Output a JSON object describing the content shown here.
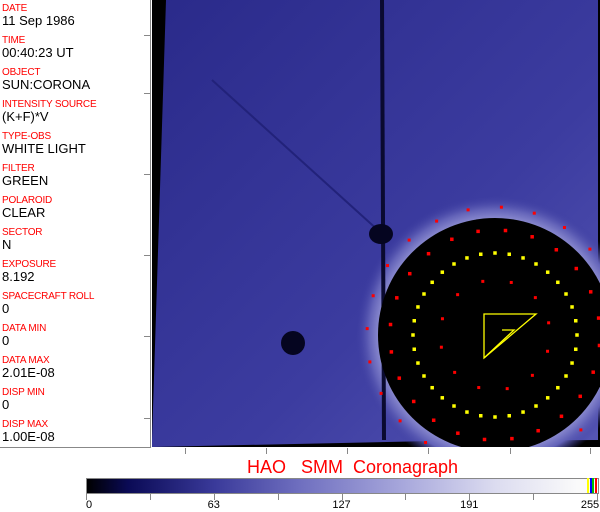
{
  "fields": [
    {
      "label": "DATE",
      "value": "11 Sep 1986"
    },
    {
      "label": "TIME",
      "value": "00:40:23 UT"
    },
    {
      "label": "OBJECT",
      "value": "SUN:CORONA"
    },
    {
      "label": "INTENSITY SOURCE",
      "value": "(K+F)*V"
    },
    {
      "label": "TYPE-OBS",
      "value": "WHITE LIGHT"
    },
    {
      "label": "FILTER",
      "value": "GREEN"
    },
    {
      "label": "POLAROID",
      "value": "CLEAR"
    },
    {
      "label": "SECTOR",
      "value": "N"
    },
    {
      "label": "EXPOSURE",
      "value": "8.192"
    },
    {
      "label": "SPACECRAFT ROLL",
      "value": "0"
    },
    {
      "label": "DATA MIN",
      "value": "0"
    },
    {
      "label": "DATA MAX",
      "value": "2.01E-08"
    },
    {
      "label": "DISP MIN",
      "value": "0"
    },
    {
      "label": "DISP MAX",
      "value": "1.00E-08"
    }
  ],
  "title": "HAO   SMM  Coronagraph",
  "colorbar": {
    "ticks": [
      "0",
      "63",
      "127",
      "191",
      "255"
    ],
    "min": 0,
    "max": 255,
    "end_colors": [
      "#ffff00",
      "#0000ff",
      "#00c000",
      "#ff0000"
    ]
  },
  "colors": {
    "label": "#ff0000",
    "overlay_yellow": "#ffff00",
    "overlay_red": "#ff0000",
    "image_blue": "#3a3a9a"
  }
}
